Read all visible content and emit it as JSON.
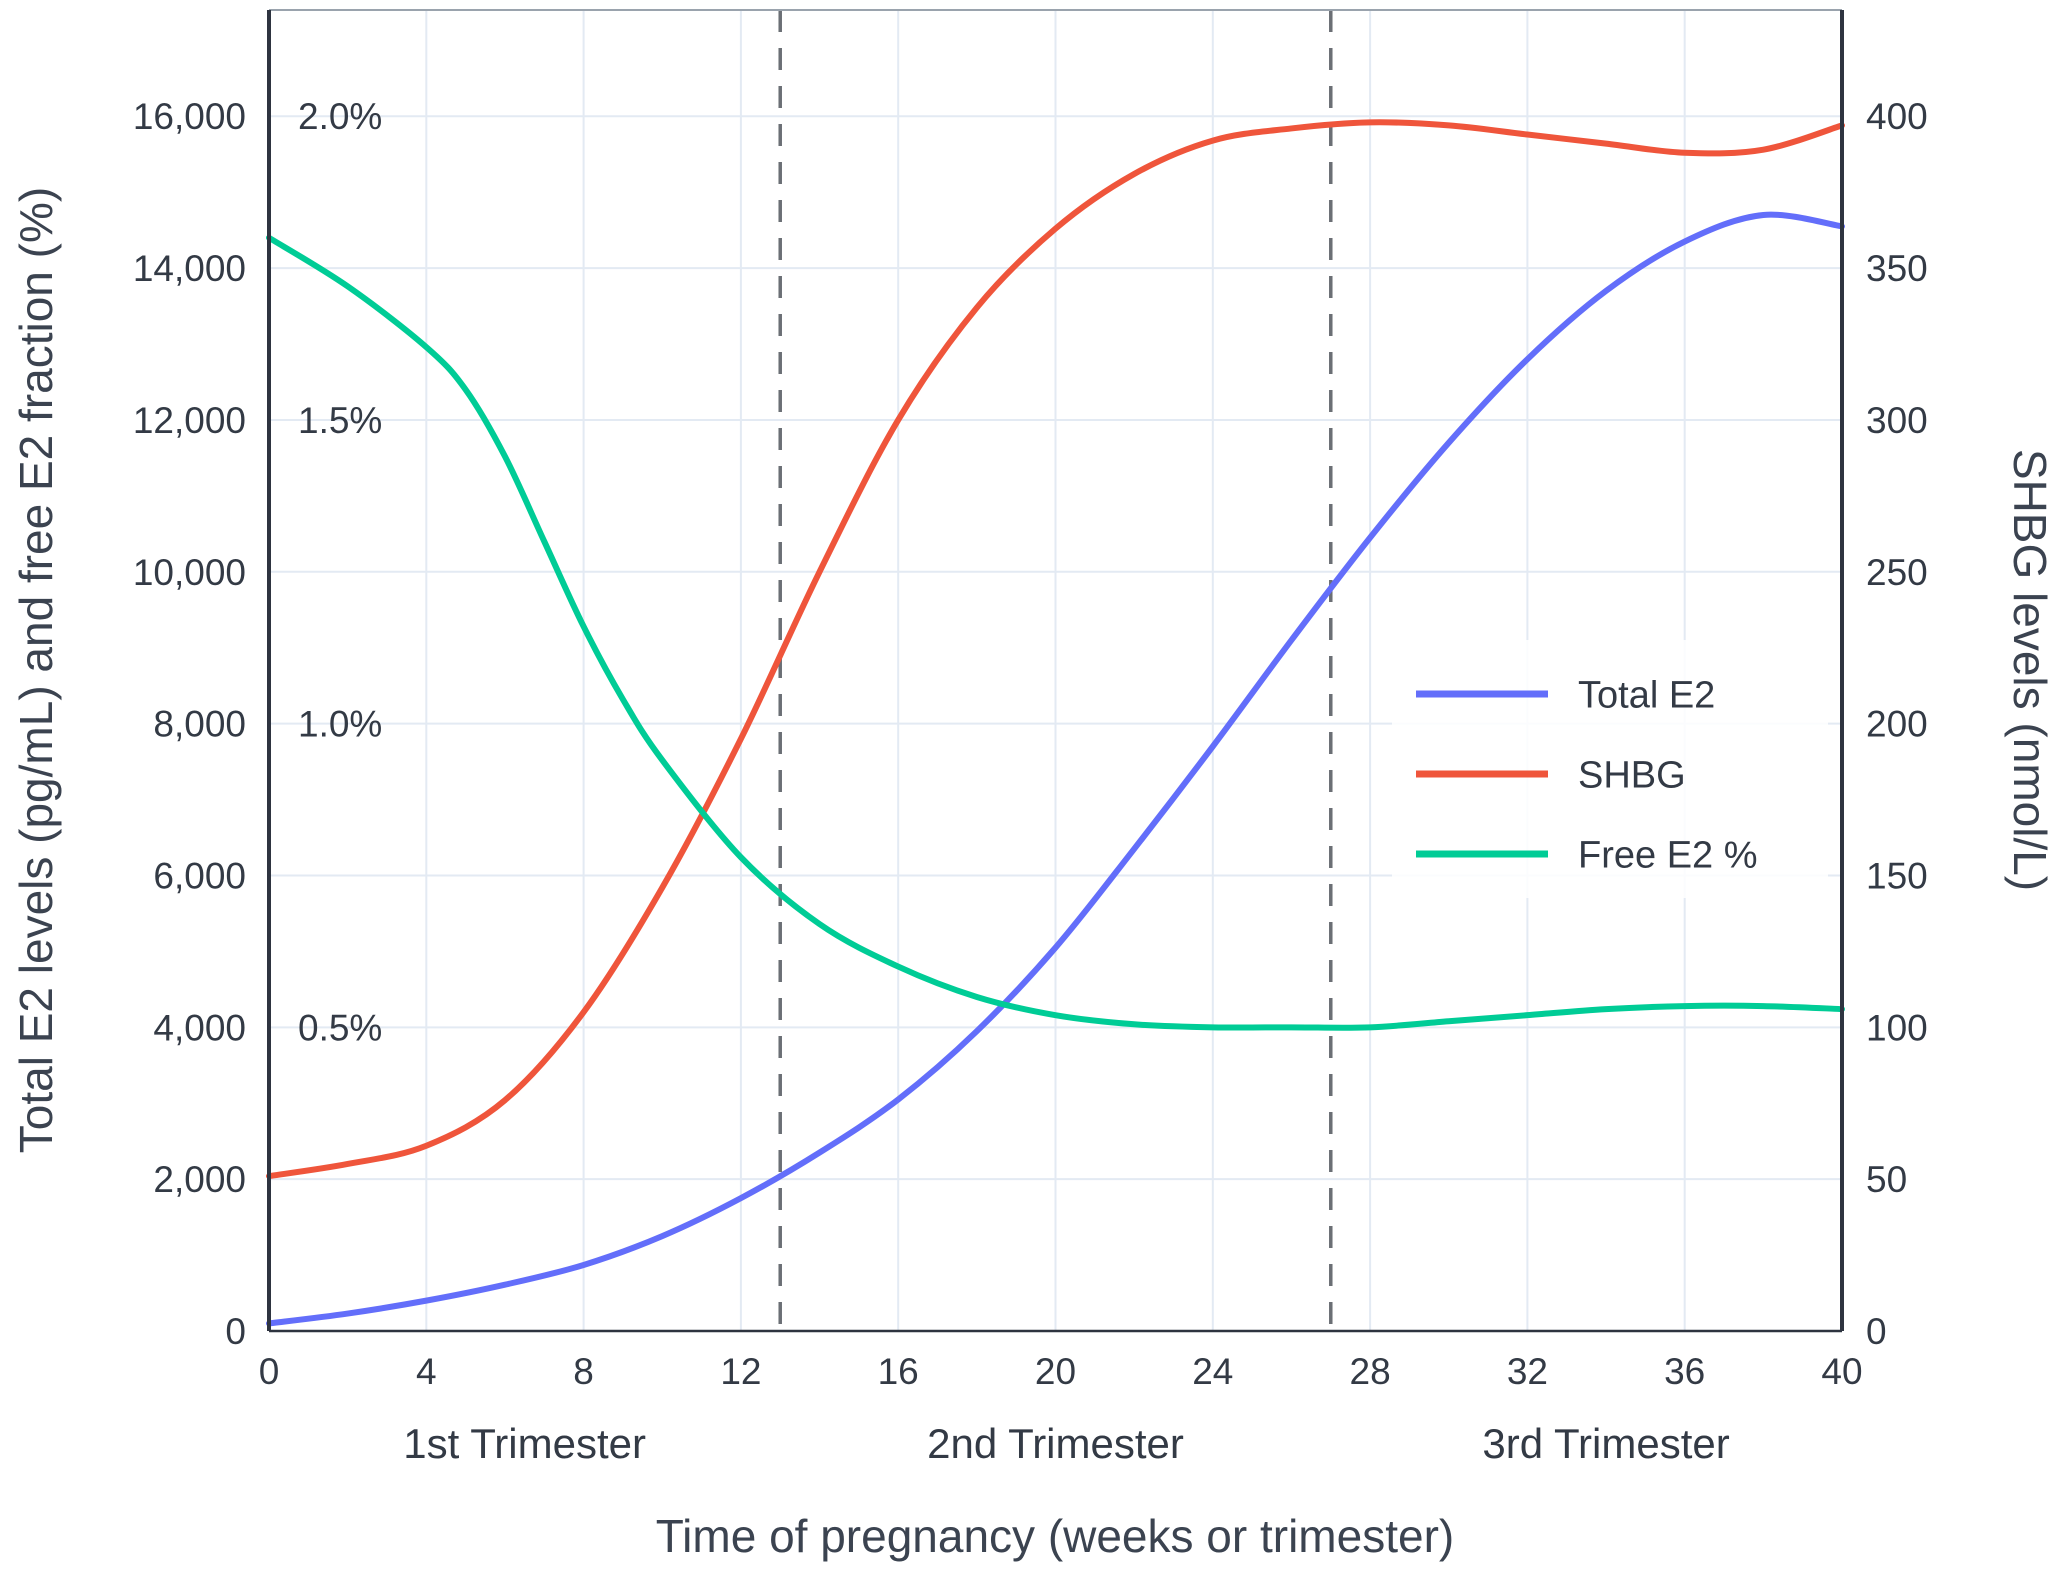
{
  "chart_data": {
    "type": "line",
    "title": "",
    "xlabel": "Time of pregnancy (weeks or trimester)",
    "ylabel_left": "Total E2 levels (pg/mL) and free E2 fraction (%)",
    "ylabel_right": "SHBG levels (nmol/L)",
    "x_range": [
      0,
      40
    ],
    "x_ticks": [
      0,
      4,
      8,
      12,
      16,
      20,
      24,
      28,
      32,
      36,
      40
    ],
    "x_tick_labels": [
      "0",
      "4",
      "8",
      "12",
      "16",
      "20",
      "24",
      "28",
      "32",
      "36",
      "40"
    ],
    "y_left_range": [
      0,
      16000
    ],
    "y_left_ticks": [
      0,
      2000,
      4000,
      6000,
      8000,
      10000,
      12000,
      14000,
      16000
    ],
    "y_left_tick_labels": [
      "0",
      "2,000",
      "4,000",
      "6,000",
      "8,000",
      "10,000",
      "12,000",
      "14,000",
      "16,000"
    ],
    "percent_labels": [
      {
        "value": 4000,
        "label": "0.5%"
      },
      {
        "value": 8000,
        "label": "1.0%"
      },
      {
        "value": 12000,
        "label": "1.5%"
      },
      {
        "value": 16000,
        "label": "2.0%"
      }
    ],
    "y_right_range": [
      0,
      400
    ],
    "y_right_ticks": [
      0,
      50,
      100,
      150,
      200,
      250,
      300,
      350,
      400
    ],
    "y_right_tick_labels": [
      "0",
      "50",
      "100",
      "150",
      "200",
      "250",
      "300",
      "350",
      "400"
    ],
    "trimester_dividers": [
      13,
      27
    ],
    "trimester_labels": [
      {
        "week": 6.5,
        "label": "1st Trimester"
      },
      {
        "week": 20,
        "label": "2nd Trimester"
      },
      {
        "week": 34,
        "label": "3rd Trimester"
      }
    ],
    "legend_position": "middle-right",
    "grid": true,
    "series": [
      {
        "name": "Total E2",
        "axis": "left",
        "unit": "pg/mL",
        "color": "#636EFA",
        "x": [
          0,
          2,
          4,
          6,
          8,
          10,
          12,
          14,
          16,
          18,
          20,
          22,
          24,
          26,
          28,
          30,
          32,
          34,
          36,
          38,
          40
        ],
        "y": [
          100,
          230,
          400,
          610,
          870,
          1250,
          1750,
          2350,
          3050,
          3950,
          5050,
          6350,
          7700,
          9100,
          10450,
          11700,
          12800,
          13700,
          14350,
          14700,
          14550
        ]
      },
      {
        "name": "SHBG",
        "axis": "right",
        "unit": "nmol/L",
        "color": "#EF553B",
        "x": [
          0,
          2,
          4,
          6,
          8,
          10,
          12,
          14,
          16,
          18,
          20,
          22,
          24,
          26,
          28,
          30,
          32,
          34,
          36,
          38,
          40
        ],
        "y": [
          51,
          55,
          61,
          76,
          105,
          146,
          195,
          250,
          300,
          337,
          363,
          381,
          392,
          396,
          398,
          397,
          394,
          391,
          388,
          389,
          397
        ]
      },
      {
        "name": "Free E2 %",
        "axis": "percent",
        "unit": "%",
        "color": "#00CC96",
        "x": [
          0,
          2,
          4,
          5,
          6,
          7,
          8,
          9,
          10,
          12,
          14,
          16,
          18,
          20,
          22,
          24,
          26,
          28,
          30,
          32,
          34,
          36,
          38,
          40
        ],
        "y": [
          1.8,
          1.72,
          1.62,
          1.55,
          1.44,
          1.3,
          1.16,
          1.04,
          0.94,
          0.78,
          0.67,
          0.6,
          0.55,
          0.52,
          0.505,
          0.5,
          0.5,
          0.5,
          0.51,
          0.52,
          0.53,
          0.535,
          0.535,
          0.53
        ]
      }
    ],
    "colors": {
      "background": "#ffffff",
      "grid": "#E3EAF3",
      "divider": "#6b6f75",
      "spine": "#2e3440",
      "top_spine": "#9aa3ad",
      "text": "#333a45"
    }
  }
}
